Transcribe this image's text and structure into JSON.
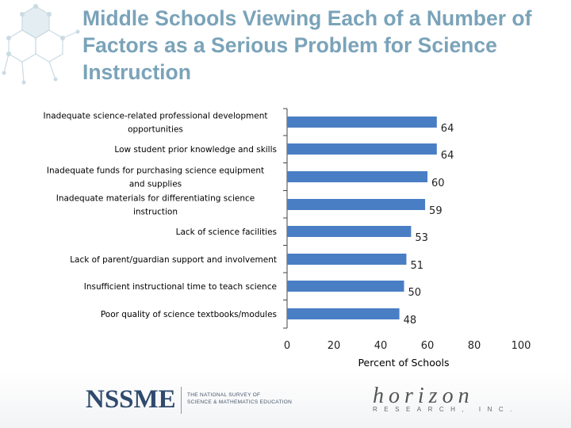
{
  "title": "Middle Schools Viewing Each of a Number of Factors as a Serious Problem for Science Instruction",
  "colors": {
    "bar": "#4a7ec4",
    "title": "#7aa3b9",
    "axis": "#444444",
    "text": "#000000"
  },
  "chart_data": {
    "type": "bar",
    "orientation": "horizontal",
    "categories": [
      "Inadequate science-related professional development opportunities",
      "Low student prior knowledge and skills",
      "Inadequate funds for purchasing science equipment and supplies",
      "Inadequate materials for differentiating science instruction",
      "Lack of science facilities",
      "Lack of parent/guardian support and involvement",
      "Insufficient instructional time to teach science",
      "Poor quality of science textbooks/modules"
    ],
    "category_lines": [
      [
        "Inadequate science-related professional development",
        "opportunities"
      ],
      [
        "Low student prior knowledge and skills"
      ],
      [
        "Inadequate funds for purchasing science equipment",
        "and supplies"
      ],
      [
        "Inadequate materials for differentiating science",
        "instruction"
      ],
      [
        "Lack of science facilities"
      ],
      [
        "Lack of parent/guardian support and involvement"
      ],
      [
        "Insufficient instructional time to teach science"
      ],
      [
        "Poor quality of science textbooks/modules"
      ]
    ],
    "values": [
      64,
      64,
      60,
      59,
      53,
      51,
      50,
      48
    ],
    "xlabel": "Percent of Schools",
    "xlim": [
      0,
      100
    ],
    "xticks": [
      0,
      20,
      40,
      60,
      80,
      100
    ],
    "grid": false,
    "legend": "none"
  },
  "footer": {
    "nssme_logo": "NSSME",
    "nssme_sub": "THE NATIONAL SURVEY OF\nSCIENCE & MATHEMATICS EDUCATION",
    "horizon_logo": "horizon",
    "horizon_sub": "RESEARCH, INC."
  }
}
